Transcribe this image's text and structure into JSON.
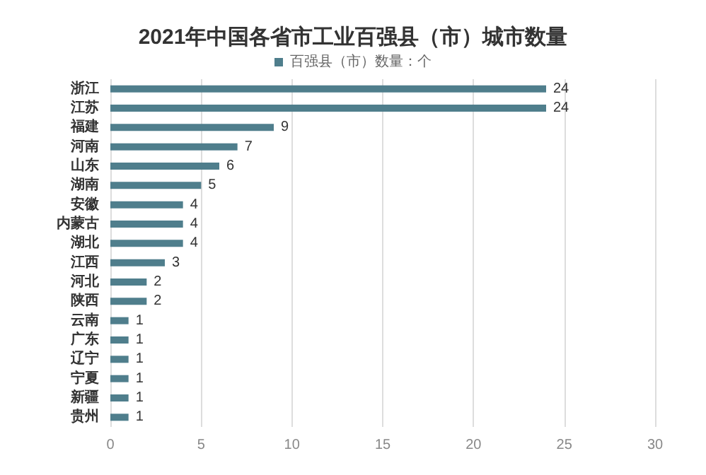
{
  "chart_data": {
    "type": "bar",
    "orientation": "horizontal",
    "title": "2021年中国各省市工业百强县（市）城市数量",
    "categories": [
      "浙江",
      "江苏",
      "福建",
      "河南",
      "山东",
      "湖南",
      "安徽",
      "内蒙古",
      "湖北",
      "江西",
      "河北",
      "陕西",
      "云南",
      "广东",
      "辽宁",
      "宁夏",
      "新疆",
      "贵州"
    ],
    "series": [
      {
        "name": "百强县（市）数量：个",
        "color": "#4f7e8c",
        "values": [
          24,
          24,
          9,
          7,
          6,
          5,
          4,
          4,
          4,
          3,
          2,
          2,
          1,
          1,
          1,
          1,
          1,
          1
        ]
      }
    ],
    "xlim": [
      0,
      30
    ],
    "xticks": [
      0,
      5,
      10,
      15,
      20,
      25,
      30
    ],
    "grid": "x",
    "legend": "top",
    "data_labels": true
  }
}
